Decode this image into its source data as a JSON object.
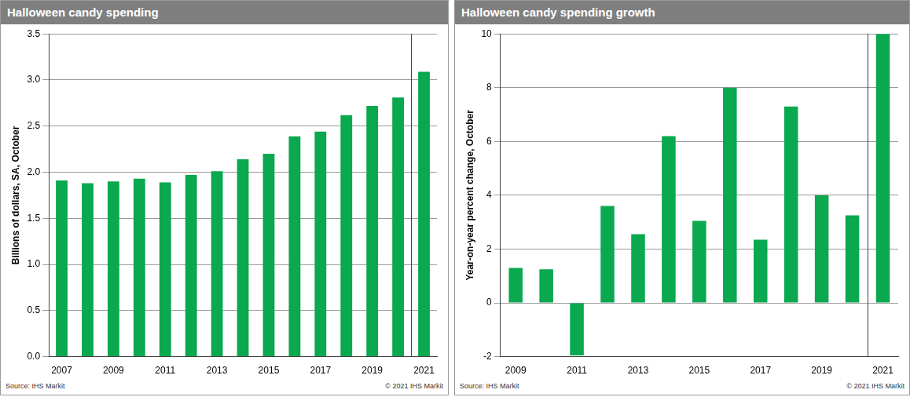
{
  "chart_data": [
    {
      "type": "bar",
      "title": "Halloween candy spending",
      "ylabel": "Billions of dollars, SA, October",
      "categories": [
        "2007",
        null,
        "2009",
        null,
        "2011",
        null,
        "2013",
        null,
        "2015",
        null,
        "2017",
        null,
        "2019",
        null,
        "2021"
      ],
      "values": [
        1.91,
        1.88,
        1.9,
        1.93,
        1.89,
        1.97,
        2.01,
        2.14,
        2.2,
        2.39,
        2.44,
        2.62,
        2.72,
        2.81,
        3.09
      ],
      "color": "#0aa84f",
      "ylim": [
        0,
        3.5
      ],
      "yticks": [
        {
          "value": 0,
          "label": "0.0"
        },
        {
          "value": 0.5,
          "label": "0.5"
        },
        {
          "value": 1,
          "label": "1.0"
        },
        {
          "value": 1.5,
          "label": "1.5"
        },
        {
          "value": 2,
          "label": "2.0"
        },
        {
          "value": 2.5,
          "label": "2.5"
        },
        {
          "value": 3,
          "label": "3.0"
        },
        {
          "value": 3.5,
          "label": "3.5"
        }
      ],
      "grid": true,
      "source": "Source: IHS Markit",
      "copyright": "© 2021 IHS Markit"
    },
    {
      "type": "bar",
      "title": "Halloween candy spending growth",
      "ylabel": "Year-on-year percent change, October",
      "categories": [
        "2009",
        null,
        "2011",
        null,
        "2013",
        null,
        "2015",
        null,
        "2017",
        null,
        "2019",
        null,
        "2021"
      ],
      "values": [
        1.3,
        1.25,
        -1.95,
        3.6,
        2.55,
        6.2,
        3.05,
        8.0,
        2.35,
        7.3,
        4.0,
        3.25,
        10.0
      ],
      "color": "#0aa84f",
      "ylim": [
        -2,
        10
      ],
      "yticks": [
        -2,
        0,
        2,
        4,
        6,
        8,
        10
      ],
      "grid": true,
      "source": "Source: IHS Markit",
      "copyright": "© 2021 IHS Markit"
    }
  ]
}
